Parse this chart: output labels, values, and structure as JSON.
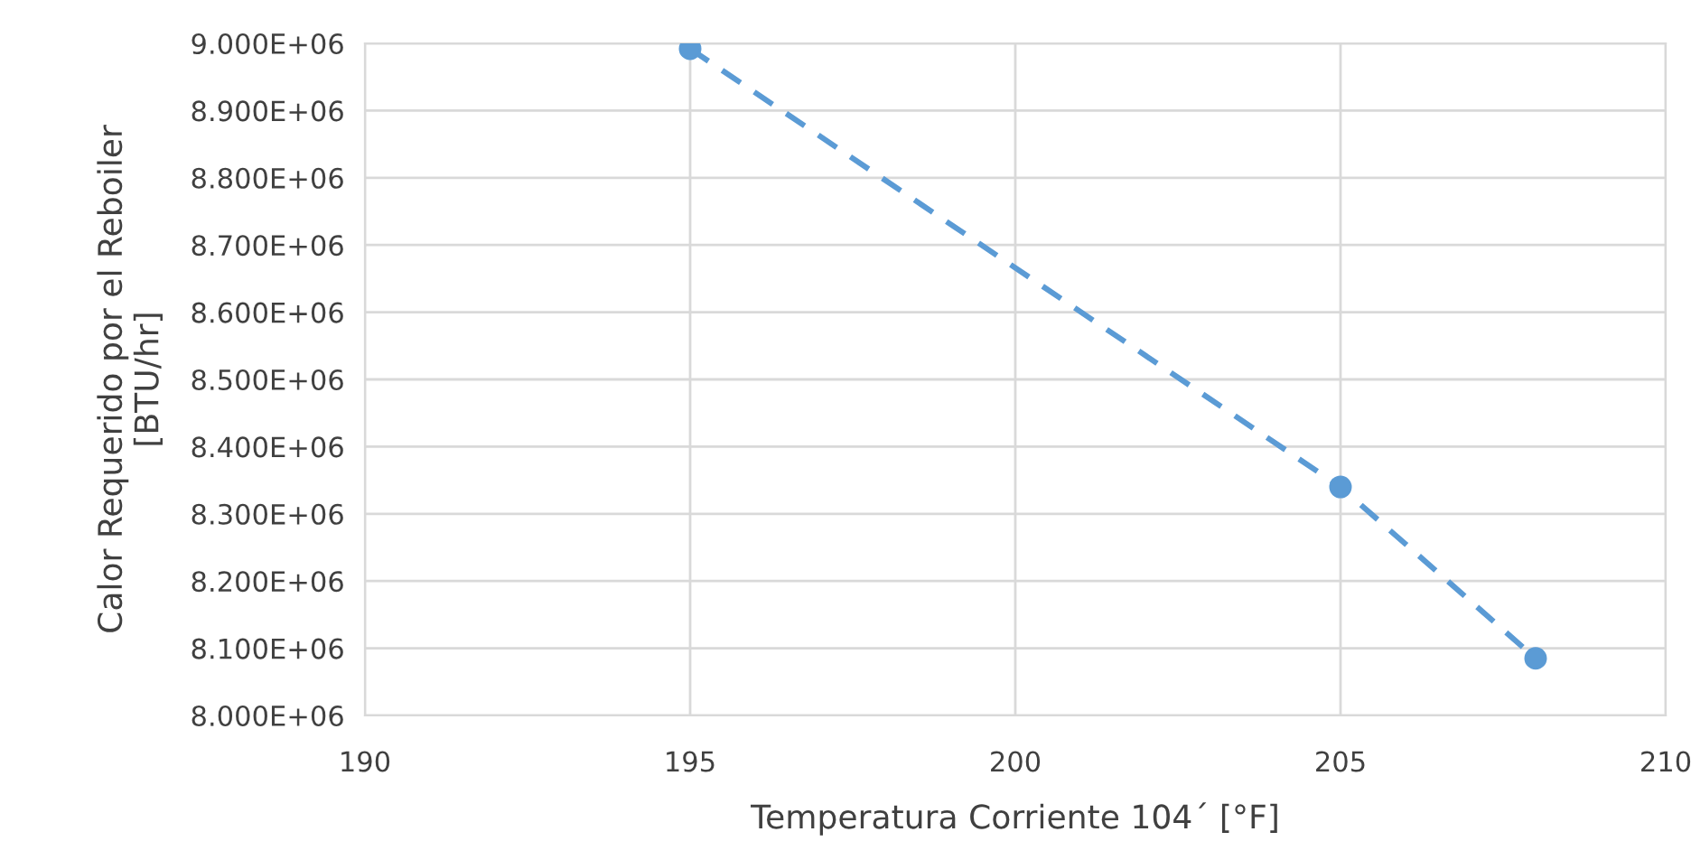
{
  "chart_data": {
    "type": "line",
    "xlabel": "Temperatura Corriente 104´ [°F]",
    "ylabel": "Calor Requerido por el Reboiler\n[BTU/hr]",
    "x": [
      195,
      205,
      208
    ],
    "series": [
      {
        "color": "#5b9bd5",
        "values": [
          8992000,
          8340000,
          8085000
        ]
      }
    ],
    "marker": "circle",
    "line_style": "dashed",
    "grid": true,
    "xlim": [
      190,
      210
    ],
    "xticks": [
      190,
      195,
      200,
      205,
      210
    ],
    "ylim": [
      8000000,
      9000000
    ],
    "yticks": [
      {
        "value": 8000000,
        "label": "8.000E+06"
      },
      {
        "value": 8100000,
        "label": "8.100E+06"
      },
      {
        "value": 8200000,
        "label": "8.200E+06"
      },
      {
        "value": 8300000,
        "label": "8.300E+06"
      },
      {
        "value": 8400000,
        "label": "8.400E+06"
      },
      {
        "value": 8500000,
        "label": "8.500E+06"
      },
      {
        "value": 8600000,
        "label": "8.600E+06"
      },
      {
        "value": 8700000,
        "label": "8.700E+06"
      },
      {
        "value": 8800000,
        "label": "8.800E+06"
      },
      {
        "value": 8900000,
        "label": "8.900E+06"
      },
      {
        "value": 9000000,
        "label": "9.000E+06"
      }
    ]
  }
}
